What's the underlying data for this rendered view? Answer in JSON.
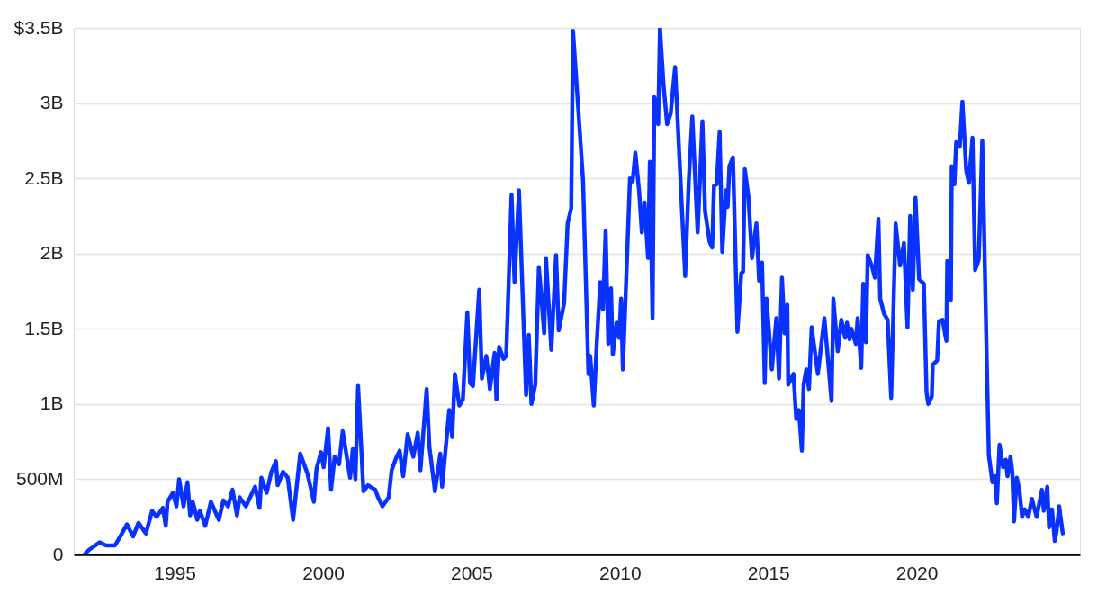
{
  "chart_data": {
    "type": "line",
    "x": [
      1991.96,
      1992.11,
      1992.47,
      1992.69,
      1992.99,
      1993.17,
      1993.39,
      1993.6,
      1993.78,
      1994.03,
      1994.24,
      1994.39,
      1994.6,
      1994.7,
      1994.76,
      1994.94,
      1995.06,
      1995.15,
      1995.3,
      1995.43,
      1995.52,
      1995.61,
      1995.76,
      1995.85,
      1996.03,
      1996.22,
      1996.49,
      1996.64,
      1996.8,
      1996.95,
      1997.1,
      1997.19,
      1997.4,
      1997.71,
      1997.86,
      1997.92,
      1998.1,
      1998.26,
      1998.41,
      1998.47,
      1998.65,
      1998.81,
      1998.99,
      1999.23,
      1999.47,
      1999.69,
      1999.78,
      1999.93,
      2000.02,
      2000.17,
      2000.27,
      2000.39,
      2000.54,
      2000.66,
      2000.91,
      2001.0,
      2001.09,
      2001.18,
      2001.36,
      2001.51,
      2001.76,
      2001.85,
      2002.0,
      2002.21,
      2002.31,
      2002.46,
      2002.58,
      2002.7,
      2002.85,
      2003.04,
      2003.19,
      2003.28,
      2003.49,
      2003.58,
      2003.77,
      2003.95,
      2004.01,
      2004.25,
      2004.35,
      2004.44,
      2004.59,
      2004.71,
      2004.86,
      2004.95,
      2005.05,
      2005.26,
      2005.35,
      2005.5,
      2005.62,
      2005.78,
      2005.84,
      2005.93,
      2006.08,
      2006.17,
      2006.35,
      2006.45,
      2006.6,
      2006.84,
      2006.93,
      2007.02,
      2007.15,
      2007.27,
      2007.45,
      2007.51,
      2007.69,
      2007.85,
      2007.94,
      2008.12,
      2008.24,
      2008.36,
      2008.42,
      2008.67,
      2008.76,
      2008.94,
      2009.0,
      2009.12,
      2009.22,
      2009.34,
      2009.43,
      2009.52,
      2009.61,
      2009.7,
      2009.76,
      2009.89,
      2009.98,
      2010.04,
      2010.1,
      2010.34,
      2010.43,
      2010.52,
      2010.65,
      2010.74,
      2010.83,
      2010.95,
      2011.01,
      2011.1,
      2011.16,
      2011.29,
      2011.35,
      2011.47,
      2011.59,
      2011.71,
      2011.86,
      2012.02,
      2012.2,
      2012.32,
      2012.44,
      2012.62,
      2012.78,
      2012.87,
      2013.02,
      2013.11,
      2013.17,
      2013.26,
      2013.36,
      2013.45,
      2013.57,
      2013.63,
      2013.69,
      2013.81,
      2013.96,
      2014.09,
      2014.15,
      2014.21,
      2014.33,
      2014.45,
      2014.6,
      2014.69,
      2014.79,
      2014.88,
      2014.94,
      2015.12,
      2015.27,
      2015.36,
      2015.46,
      2015.55,
      2015.64,
      2015.67,
      2015.85,
      2015.94,
      2016.03,
      2016.13,
      2016.19,
      2016.28,
      2016.37,
      2016.46,
      2016.67,
      2016.89,
      2017.13,
      2017.19,
      2017.34,
      2017.46,
      2017.59,
      2017.65,
      2017.74,
      2017.8,
      2017.95,
      2018.01,
      2018.13,
      2018.2,
      2018.29,
      2018.35,
      2018.5,
      2018.59,
      2018.71,
      2018.77,
      2018.9,
      2019.02,
      2019.14,
      2019.29,
      2019.44,
      2019.57,
      2019.69,
      2019.78,
      2019.87,
      2019.96,
      2020.08,
      2020.24,
      2020.33,
      2020.39,
      2020.51,
      2020.54,
      2020.69,
      2020.75,
      2020.87,
      2021.0,
      2021.03,
      2021.15,
      2021.18,
      2021.27,
      2021.33,
      2021.45,
      2021.54,
      2021.67,
      2021.76,
      2021.88,
      2021.97,
      2022.09,
      2022.21,
      2022.37,
      2022.43,
      2022.55,
      2022.64,
      2022.7,
      2022.79,
      2022.91,
      2023.0,
      2023.06,
      2023.16,
      2023.22,
      2023.28,
      2023.37,
      2023.46,
      2023.55,
      2023.64,
      2023.76,
      2023.88,
      2024.04,
      2024.22,
      2024.28,
      2024.4,
      2024.46,
      2024.56,
      2024.65,
      2024.71,
      2024.8,
      2024.92
    ],
    "series": [
      {
        "color": "#0a32ff",
        "values": [
          0,
          30000000.0,
          80000000.0,
          60000000.0,
          60000000.0,
          120000000.0,
          200000000.0,
          120000000.0,
          210000000.0,
          140000000.0,
          290000000.0,
          250000000.0,
          310000000.0,
          190000000.0,
          350000000.0,
          410000000.0,
          320000000.0,
          500000000.0,
          320000000.0,
          480000000.0,
          260000000.0,
          350000000.0,
          230000000.0,
          290000000.0,
          190000000.0,
          350000000.0,
          230000000.0,
          360000000.0,
          320000000.0,
          430000000.0,
          260000000.0,
          380000000.0,
          320000000.0,
          450000000.0,
          310000000.0,
          510000000.0,
          410000000.0,
          550000000.0,
          620000000.0,
          460000000.0,
          550000000.0,
          510000000.0,
          230000000.0,
          670000000.0,
          540000000.0,
          350000000.0,
          570000000.0,
          680000000.0,
          580000000.0,
          840000000.0,
          430000000.0,
          650000000.0,
          600000000.0,
          820000000.0,
          510000000.0,
          700000000.0,
          500000000.0,
          1120000000.0,
          420000000.0,
          460000000.0,
          430000000.0,
          380000000.0,
          320000000.0,
          380000000.0,
          560000000.0,
          640000000.0,
          690000000.0,
          520000000.0,
          800000000.0,
          650000000.0,
          810000000.0,
          560000000.0,
          1100000000.0,
          720000000.0,
          420000000.0,
          670000000.0,
          450000000.0,
          960000000.0,
          780000000.0,
          1200000000.0,
          990000000.0,
          1030000000.0,
          1610000000.0,
          1140000000.0,
          1120000000.0,
          1760000000.0,
          1170000000.0,
          1320000000.0,
          1100000000.0,
          1340000000.0,
          1030000000.0,
          1380000000.0,
          1300000000.0,
          1320000000.0,
          2390000000.0,
          1810000000.0,
          2420000000.0,
          1060000000.0,
          1460000000.0,
          1000000000.0,
          1130000000.0,
          1910000000.0,
          1470000000.0,
          1970000000.0,
          1360000000.0,
          1990000000.0,
          1490000000.0,
          1670000000.0,
          2200000000.0,
          2300000000.0,
          3480000000.0,
          2750000000.0,
          2480000000.0,
          1200000000.0,
          1320000000.0,
          990000000.0,
          1400000000.0,
          1810000000.0,
          1630000000.0,
          2150000000.0,
          1400000000.0,
          1770000000.0,
          1330000000.0,
          1540000000.0,
          1440000000.0,
          1700000000.0,
          1230000000.0,
          2500000000.0,
          2480000000.0,
          2670000000.0,
          2410000000.0,
          2140000000.0,
          2340000000.0,
          1970000000.0,
          2610000000.0,
          1570000000.0,
          3040000000.0,
          2860000000.0,
          3500000000.0,
          3120000000.0,
          2860000000.0,
          2930000000.0,
          3240000000.0,
          2580000000.0,
          1850000000.0,
          2480000000.0,
          2910000000.0,
          2140000000.0,
          2880000000.0,
          2280000000.0,
          2080000000.0,
          2040000000.0,
          2450000000.0,
          2460000000.0,
          2810000000.0,
          2010000000.0,
          2420000000.0,
          2310000000.0,
          2580000000.0,
          2640000000.0,
          1480000000.0,
          1870000000.0,
          1880000000.0,
          2560000000.0,
          2380000000.0,
          1970000000.0,
          2200000000.0,
          1820000000.0,
          1940000000.0,
          1140000000.0,
          1700000000.0,
          1230000000.0,
          1570000000.0,
          1170000000.0,
          1840000000.0,
          1470000000.0,
          1660000000.0,
          1130000000.0,
          1200000000.0,
          900000000.0,
          960000000.0,
          690000000.0,
          1130000000.0,
          1230000000.0,
          1100000000.0,
          1510000000.0,
          1200000000.0,
          1570000000.0,
          1020000000.0,
          1700000000.0,
          1350000000.0,
          1560000000.0,
          1440000000.0,
          1540000000.0,
          1430000000.0,
          1500000000.0,
          1400000000.0,
          1570000000.0,
          1240000000.0,
          1800000000.0,
          1410000000.0,
          1990000000.0,
          1910000000.0,
          1840000000.0,
          2230000000.0,
          1700000000.0,
          1600000000.0,
          1560000000.0,
          1040000000.0,
          2200000000.0,
          1920000000.0,
          2070000000.0,
          1510000000.0,
          2250000000.0,
          1760000000.0,
          2370000000.0,
          1830000000.0,
          1800000000.0,
          1080000000.0,
          1000000000.0,
          1050000000.0,
          1260000000.0,
          1290000000.0,
          1550000000.0,
          1560000000.0,
          1420000000.0,
          1950000000.0,
          1690000000.0,
          2580000000.0,
          2460000000.0,
          2740000000.0,
          2710000000.0,
          3010000000.0,
          2550000000.0,
          2470000000.0,
          2770000000.0,
          1890000000.0,
          1960000000.0,
          2750000000.0,
          1190000000.0,
          660000000.0,
          480000000.0,
          520000000.0,
          340000000.0,
          730000000.0,
          580000000.0,
          630000000.0,
          520000000.0,
          650000000.0,
          550000000.0,
          220000000.0,
          510000000.0,
          430000000.0,
          250000000.0,
          300000000.0,
          250000000.0,
          370000000.0,
          250000000.0,
          430000000.0,
          290000000.0,
          450000000.0,
          180000000.0,
          300000000.0,
          90000000.0,
          150000000.0,
          320000000.0,
          140000000.0
        ]
      }
    ],
    "xlim": [
      1991.6,
      2025.5
    ],
    "xticks": [
      1995,
      2000,
      2005,
      2010,
      2015,
      2020
    ],
    "ylim": [
      0,
      3500000000.0
    ],
    "yticks": [
      0,
      {
        "value": 500000000.0,
        "label": "500M"
      },
      {
        "value": 1000000000.0,
        "label": "1B"
      },
      {
        "value": 1500000000.0,
        "label": "1.5B"
      },
      {
        "value": 2000000000.0,
        "label": "2B"
      },
      {
        "value": 2500000000.0,
        "label": "2.5B"
      },
      {
        "value": 3000000000.0,
        "label": "3B"
      },
      {
        "value": 3500000000.0,
        "label": "$3.5B"
      }
    ],
    "grid": "y",
    "marker": "none",
    "line_style": "solid"
  }
}
